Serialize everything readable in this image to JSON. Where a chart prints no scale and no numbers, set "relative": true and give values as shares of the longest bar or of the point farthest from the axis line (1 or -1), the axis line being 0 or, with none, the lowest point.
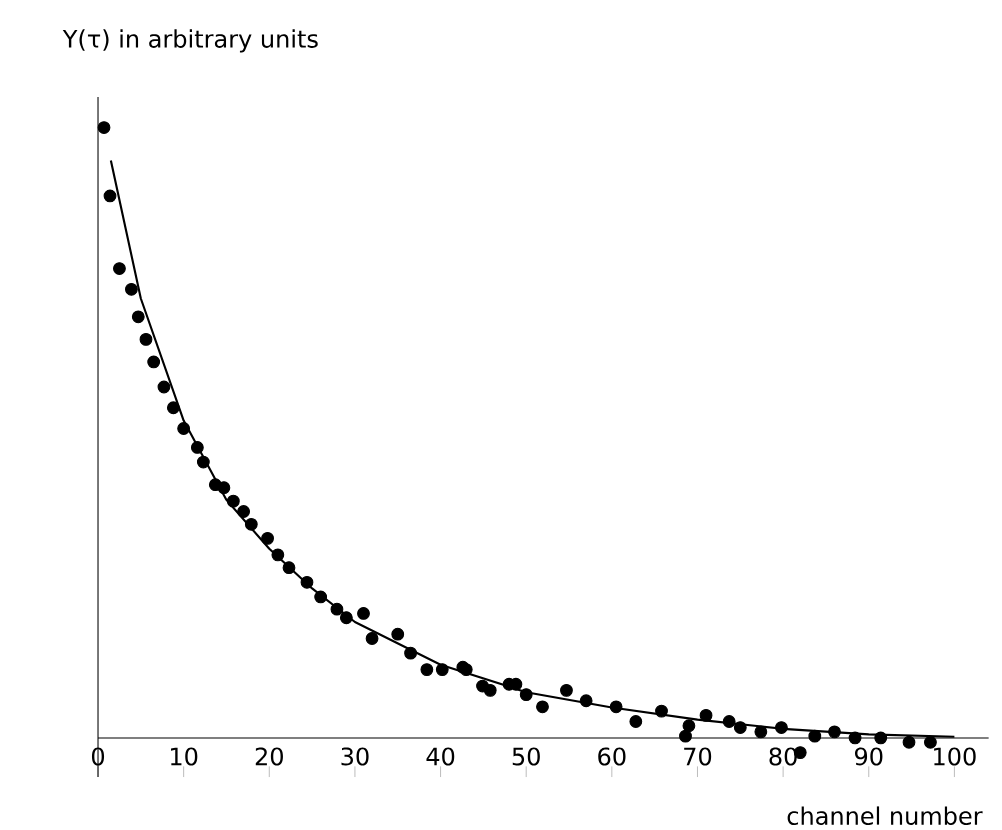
{
  "chart_data": {
    "type": "scatter",
    "relative": true,
    "ylabel": "Y(τ) in arbitrary units",
    "xlabel": "channel number",
    "xlim": [
      0,
      104
    ],
    "xticks": [
      0,
      10,
      20,
      30,
      40,
      50,
      60,
      70,
      80,
      90,
      100
    ],
    "grid": false,
    "series": [
      {
        "marker": "circle",
        "color": "#000000",
        "x": [
          0.7,
          1.4,
          2.5,
          3.9,
          4.7,
          5.6,
          6.5,
          7.7,
          8.8,
          10,
          11.6,
          12.3,
          13.7,
          14.7,
          15.8,
          17,
          17.9,
          19.8,
          21,
          22.3,
          24.4,
          26,
          27.9,
          29,
          31,
          32,
          35,
          36.5,
          38.4,
          40.2,
          42.6,
          43,
          44.9,
          45.8,
          48,
          48.8,
          50,
          51.9,
          54.7,
          57,
          60.5,
          62.8,
          65.8,
          68.6,
          69,
          71,
          73.7,
          75,
          77.4,
          79.8,
          82,
          83.7,
          86,
          88.4,
          91.4,
          94.7,
          97.2
        ],
        "values": [
          1.0,
          0.888,
          0.769,
          0.735,
          0.69,
          0.653,
          0.616,
          0.575,
          0.541,
          0.507,
          0.476,
          0.452,
          0.415,
          0.41,
          0.388,
          0.371,
          0.35,
          0.327,
          0.3,
          0.279,
          0.255,
          0.231,
          0.211,
          0.197,
          0.204,
          0.163,
          0.17,
          0.139,
          0.112,
          0.112,
          0.116,
          0.112,
          0.085,
          0.078,
          0.088,
          0.088,
          0.071,
          0.051,
          0.078,
          0.061,
          0.051,
          0.027,
          0.044,
          0.003,
          0.02,
          0.037,
          0.027,
          0.017,
          0.01,
          0.017,
          -0.024,
          0.003,
          0.01,
          0.0,
          0.0,
          -0.007,
          -0.007
        ]
      },
      {
        "type": "line",
        "color": "#000000",
        "x": [
          1.5,
          5,
          10,
          15,
          20,
          25,
          30,
          40,
          50,
          60,
          70,
          80,
          90,
          100
        ],
        "values": [
          0.946,
          0.72,
          0.52,
          0.39,
          0.31,
          0.245,
          0.19,
          0.12,
          0.075,
          0.05,
          0.03,
          0.015,
          0.006,
          0.002
        ]
      }
    ]
  }
}
